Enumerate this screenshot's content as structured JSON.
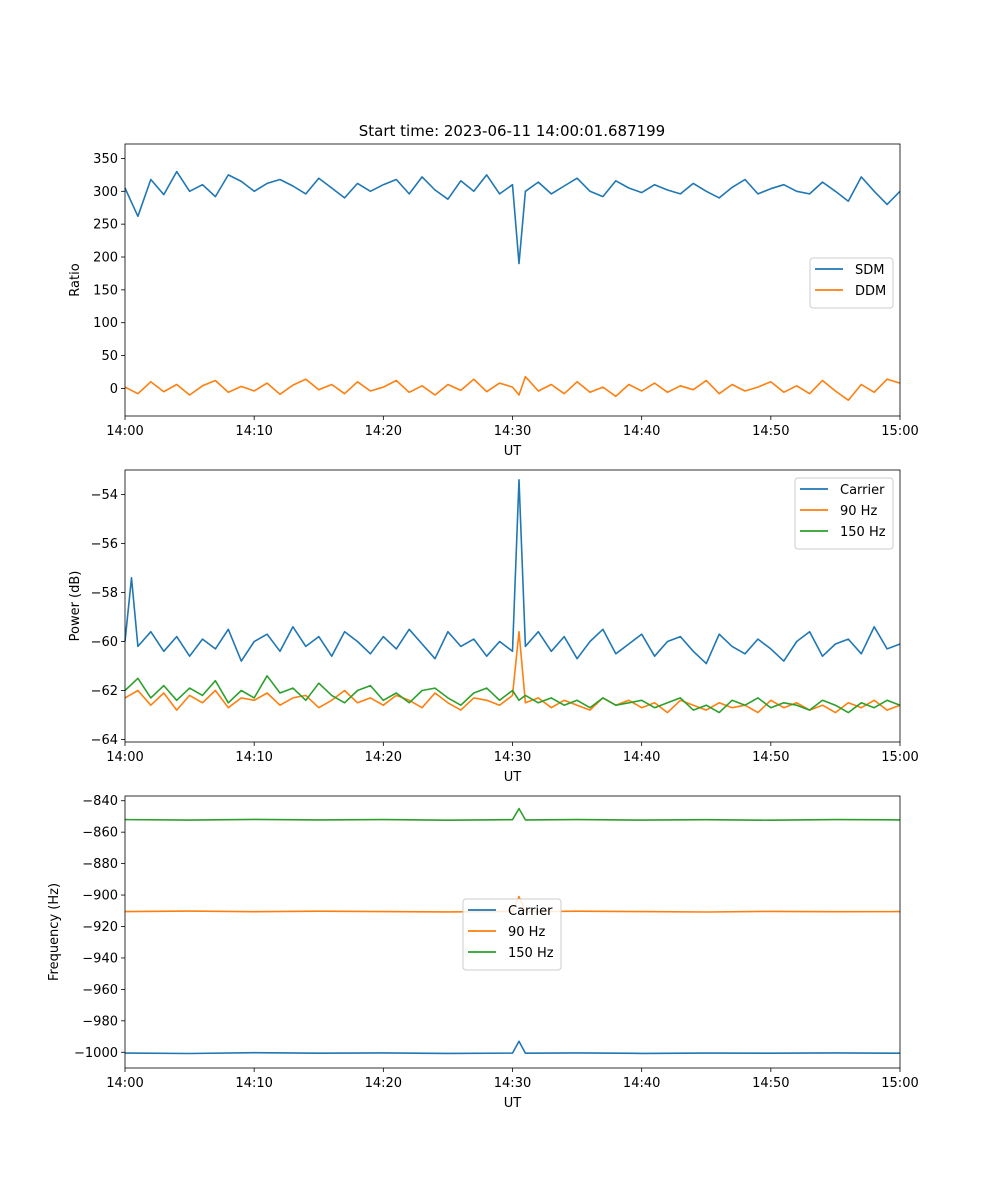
{
  "figure": {
    "title": "Start time: 2023-06-11 14:00:01.687199"
  },
  "chart_data": [
    {
      "type": "line",
      "xlabel": "UT",
      "ylabel": "Ratio",
      "xticks": [
        "14:00",
        "14:10",
        "14:20",
        "14:30",
        "14:40",
        "14:50",
        "15:00"
      ],
      "xlim": [
        "14:00",
        "15:00"
      ],
      "ylim": [
        -42,
        372
      ],
      "yticks": [
        0,
        50,
        100,
        150,
        200,
        250,
        300,
        350
      ],
      "legend": "center-right",
      "series": [
        {
          "name": "SDM",
          "color": "#1f77b4",
          "x": [
            "14:00",
            "14:01",
            "14:02",
            "14:03",
            "14:04",
            "14:05",
            "14:06",
            "14:07",
            "14:08",
            "14:09",
            "14:10",
            "14:11",
            "14:12",
            "14:13",
            "14:14",
            "14:15",
            "14:16",
            "14:17",
            "14:18",
            "14:19",
            "14:20",
            "14:21",
            "14:22",
            "14:23",
            "14:24",
            "14:25",
            "14:26",
            "14:27",
            "14:28",
            "14:29",
            "14:30",
            "14:30:30",
            "14:31",
            "14:32",
            "14:33",
            "14:34",
            "14:35",
            "14:36",
            "14:37",
            "14:38",
            "14:39",
            "14:40",
            "14:41",
            "14:42",
            "14:43",
            "14:44",
            "14:45",
            "14:46",
            "14:47",
            "14:48",
            "14:49",
            "14:50",
            "14:51",
            "14:52",
            "14:53",
            "14:54",
            "14:55",
            "14:56",
            "14:57",
            "14:58",
            "14:59",
            "15:00"
          ],
          "values": [
            305,
            262,
            318,
            295,
            330,
            300,
            310,
            292,
            325,
            315,
            300,
            312,
            318,
            308,
            296,
            320,
            305,
            290,
            312,
            300,
            310,
            318,
            296,
            322,
            302,
            288,
            316,
            300,
            325,
            296,
            310,
            190,
            300,
            314,
            296,
            308,
            320,
            300,
            292,
            316,
            305,
            298,
            310,
            302,
            296,
            312,
            300,
            290,
            306,
            318,
            296,
            304,
            310,
            300,
            296,
            314,
            300,
            285,
            322,
            300,
            280,
            300
          ]
        },
        {
          "name": "DDM",
          "color": "#ff7f0e",
          "x": [
            "14:00",
            "14:01",
            "14:02",
            "14:03",
            "14:04",
            "14:05",
            "14:06",
            "14:07",
            "14:08",
            "14:09",
            "14:10",
            "14:11",
            "14:12",
            "14:13",
            "14:14",
            "14:15",
            "14:16",
            "14:17",
            "14:18",
            "14:19",
            "14:20",
            "14:21",
            "14:22",
            "14:23",
            "14:24",
            "14:25",
            "14:26",
            "14:27",
            "14:28",
            "14:29",
            "14:30",
            "14:30:30",
            "14:31",
            "14:32",
            "14:33",
            "14:34",
            "14:35",
            "14:36",
            "14:37",
            "14:38",
            "14:39",
            "14:40",
            "14:41",
            "14:42",
            "14:43",
            "14:44",
            "14:45",
            "14:46",
            "14:47",
            "14:48",
            "14:49",
            "14:50",
            "14:51",
            "14:52",
            "14:53",
            "14:54",
            "14:55",
            "14:56",
            "14:57",
            "14:58",
            "14:59",
            "15:00"
          ],
          "values": [
            2,
            -8,
            10,
            -5,
            6,
            -10,
            4,
            12,
            -6,
            3,
            -4,
            8,
            -9,
            5,
            14,
            -2,
            6,
            -8,
            10,
            -4,
            2,
            12,
            -6,
            4,
            -10,
            6,
            -3,
            14,
            -5,
            8,
            2,
            -10,
            18,
            -4,
            6,
            -8,
            10,
            -6,
            2,
            -12,
            6,
            -4,
            8,
            -6,
            4,
            -2,
            12,
            -8,
            6,
            -4,
            2,
            10,
            -6,
            4,
            -8,
            12,
            -4,
            -18,
            6,
            -6,
            14,
            8
          ]
        }
      ]
    },
    {
      "type": "line",
      "xlabel": "UT",
      "ylabel": "Power (dB)",
      "xticks": [
        "14:00",
        "14:10",
        "14:20",
        "14:30",
        "14:40",
        "14:50",
        "15:00"
      ],
      "xlim": [
        "14:00",
        "15:00"
      ],
      "ylim": [
        -64.1,
        -53.0
      ],
      "yticks": [
        -64,
        -62,
        -60,
        -58,
        -56,
        -54
      ],
      "legend": "top-right",
      "series": [
        {
          "name": "Carrier",
          "color": "#1f77b4",
          "x": [
            "14:00",
            "14:00:30",
            "14:01",
            "14:02",
            "14:03",
            "14:04",
            "14:05",
            "14:06",
            "14:07",
            "14:08",
            "14:09",
            "14:10",
            "14:11",
            "14:12",
            "14:13",
            "14:14",
            "14:15",
            "14:16",
            "14:17",
            "14:18",
            "14:19",
            "14:20",
            "14:21",
            "14:22",
            "14:23",
            "14:24",
            "14:25",
            "14:26",
            "14:27",
            "14:28",
            "14:29",
            "14:30",
            "14:30:30",
            "14:31",
            "14:32",
            "14:33",
            "14:34",
            "14:35",
            "14:36",
            "14:37",
            "14:38",
            "14:39",
            "14:40",
            "14:41",
            "14:42",
            "14:43",
            "14:44",
            "14:45",
            "14:46",
            "14:47",
            "14:48",
            "14:49",
            "14:50",
            "14:51",
            "14:52",
            "14:53",
            "14:54",
            "14:55",
            "14:56",
            "14:57",
            "14:58",
            "14:59",
            "15:00"
          ],
          "values": [
            -60.0,
            -57.4,
            -60.2,
            -59.6,
            -60.4,
            -59.8,
            -60.6,
            -59.9,
            -60.3,
            -59.5,
            -60.8,
            -60.0,
            -59.7,
            -60.4,
            -59.4,
            -60.2,
            -59.8,
            -60.6,
            -59.6,
            -60.0,
            -60.5,
            -59.8,
            -60.3,
            -59.5,
            -60.1,
            -60.7,
            -59.6,
            -60.2,
            -59.9,
            -60.6,
            -60.0,
            -60.4,
            -53.4,
            -60.2,
            -59.6,
            -60.4,
            -59.8,
            -60.7,
            -60.0,
            -59.5,
            -60.5,
            -60.1,
            -59.7,
            -60.6,
            -60.0,
            -59.8,
            -60.4,
            -60.9,
            -59.7,
            -60.2,
            -60.5,
            -59.9,
            -60.3,
            -60.8,
            -60.0,
            -59.6,
            -60.6,
            -60.1,
            -59.9,
            -60.5,
            -59.4,
            -60.3,
            -60.1
          ]
        },
        {
          "name": "90 Hz",
          "color": "#ff7f0e",
          "x": [
            "14:00",
            "14:01",
            "14:02",
            "14:03",
            "14:04",
            "14:05",
            "14:06",
            "14:07",
            "14:08",
            "14:09",
            "14:10",
            "14:11",
            "14:12",
            "14:13",
            "14:14",
            "14:15",
            "14:16",
            "14:17",
            "14:18",
            "14:19",
            "14:20",
            "14:21",
            "14:22",
            "14:23",
            "14:24",
            "14:25",
            "14:26",
            "14:27",
            "14:28",
            "14:29",
            "14:30",
            "14:30:30",
            "14:31",
            "14:32",
            "14:33",
            "14:34",
            "14:35",
            "14:36",
            "14:37",
            "14:38",
            "14:39",
            "14:40",
            "14:41",
            "14:42",
            "14:43",
            "14:44",
            "14:45",
            "14:46",
            "14:47",
            "14:48",
            "14:49",
            "14:50",
            "14:51",
            "14:52",
            "14:53",
            "14:54",
            "14:55",
            "14:56",
            "14:57",
            "14:58",
            "14:59",
            "15:00"
          ],
          "values": [
            -62.3,
            -62.0,
            -62.6,
            -62.1,
            -62.8,
            -62.2,
            -62.5,
            -62.0,
            -62.7,
            -62.3,
            -62.4,
            -62.1,
            -62.6,
            -62.3,
            -62.2,
            -62.7,
            -62.4,
            -62.0,
            -62.5,
            -62.3,
            -62.6,
            -62.2,
            -62.4,
            -62.7,
            -62.1,
            -62.5,
            -62.8,
            -62.3,
            -62.4,
            -62.6,
            -62.2,
            -59.6,
            -62.5,
            -62.3,
            -62.7,
            -62.4,
            -62.6,
            -62.8,
            -62.3,
            -62.6,
            -62.4,
            -62.7,
            -62.5,
            -62.9,
            -62.4,
            -62.6,
            -62.8,
            -62.5,
            -62.7,
            -62.6,
            -62.9,
            -62.4,
            -62.7,
            -62.5,
            -62.8,
            -62.6,
            -62.9,
            -62.5,
            -62.7,
            -62.4,
            -62.8,
            -62.6
          ]
        },
        {
          "name": "150 Hz",
          "color": "#2ca02c",
          "x": [
            "14:00",
            "14:01",
            "14:02",
            "14:03",
            "14:04",
            "14:05",
            "14:06",
            "14:07",
            "14:08",
            "14:09",
            "14:10",
            "14:11",
            "14:12",
            "14:13",
            "14:14",
            "14:15",
            "14:16",
            "14:17",
            "14:18",
            "14:19",
            "14:20",
            "14:21",
            "14:22",
            "14:23",
            "14:24",
            "14:25",
            "14:26",
            "14:27",
            "14:28",
            "14:29",
            "14:30",
            "14:30:30",
            "14:31",
            "14:32",
            "14:33",
            "14:34",
            "14:35",
            "14:36",
            "14:37",
            "14:38",
            "14:39",
            "14:40",
            "14:41",
            "14:42",
            "14:43",
            "14:44",
            "14:45",
            "14:46",
            "14:47",
            "14:48",
            "14:49",
            "14:50",
            "14:51",
            "14:52",
            "14:53",
            "14:54",
            "14:55",
            "14:56",
            "14:57",
            "14:58",
            "14:59",
            "15:00"
          ],
          "values": [
            -62.0,
            -61.5,
            -62.3,
            -61.8,
            -62.4,
            -61.9,
            -62.2,
            -61.6,
            -62.5,
            -62.0,
            -62.3,
            -61.4,
            -62.1,
            -61.9,
            -62.4,
            -61.7,
            -62.2,
            -62.5,
            -62.0,
            -61.8,
            -62.4,
            -62.1,
            -62.5,
            -62.0,
            -61.9,
            -62.3,
            -62.6,
            -62.1,
            -61.9,
            -62.4,
            -62.0,
            -62.4,
            -62.2,
            -62.5,
            -62.3,
            -62.6,
            -62.4,
            -62.7,
            -62.3,
            -62.6,
            -62.5,
            -62.4,
            -62.7,
            -62.5,
            -62.3,
            -62.8,
            -62.6,
            -62.9,
            -62.4,
            -62.6,
            -62.3,
            -62.7,
            -62.5,
            -62.6,
            -62.8,
            -62.4,
            -62.6,
            -62.9,
            -62.5,
            -62.7,
            -62.4,
            -62.6
          ]
        }
      ]
    },
    {
      "type": "line",
      "xlabel": "UT",
      "ylabel": "Frequency (Hz)",
      "xticks": [
        "14:00",
        "14:10",
        "14:20",
        "14:30",
        "14:40",
        "14:50",
        "15:00"
      ],
      "xlim": [
        "14:00",
        "15:00"
      ],
      "ylim": [
        -1010,
        -837
      ],
      "yticks": [
        -1000,
        -980,
        -960,
        -940,
        -920,
        -900,
        -880,
        -860,
        -840
      ],
      "legend": "center",
      "series": [
        {
          "name": "Carrier",
          "color": "#1f77b4",
          "x": [
            "14:00",
            "14:05",
            "14:10",
            "14:15",
            "14:20",
            "14:25",
            "14:30",
            "14:30:30",
            "14:31",
            "14:35",
            "14:40",
            "14:45",
            "14:50",
            "14:55",
            "15:00"
          ],
          "values": [
            -1000.5,
            -1000.8,
            -1000.3,
            -1000.6,
            -1000.4,
            -1000.7,
            -1000.5,
            -993.0,
            -1000.6,
            -1000.4,
            -1000.7,
            -1000.5,
            -1000.6,
            -1000.4,
            -1000.6
          ]
        },
        {
          "name": "90 Hz",
          "color": "#ff7f0e",
          "x": [
            "14:00",
            "14:05",
            "14:10",
            "14:15",
            "14:20",
            "14:25",
            "14:30",
            "14:30:30",
            "14:31",
            "14:35",
            "14:40",
            "14:45",
            "14:50",
            "14:55",
            "15:00"
          ],
          "values": [
            -910.5,
            -910.2,
            -910.6,
            -910.3,
            -910.5,
            -910.7,
            -910.4,
            -901.0,
            -910.6,
            -910.3,
            -910.5,
            -910.8,
            -910.4,
            -910.6,
            -910.5
          ]
        },
        {
          "name": "150 Hz",
          "color": "#2ca02c",
          "x": [
            "14:00",
            "14:05",
            "14:10",
            "14:15",
            "14:20",
            "14:25",
            "14:30",
            "14:30:30",
            "14:31",
            "14:35",
            "14:40",
            "14:45",
            "14:50",
            "14:55",
            "15:00"
          ],
          "values": [
            -852.0,
            -852.3,
            -851.9,
            -852.2,
            -852.0,
            -852.4,
            -852.1,
            -845.0,
            -852.2,
            -852.0,
            -852.3,
            -852.1,
            -852.4,
            -852.0,
            -852.2
          ]
        }
      ]
    }
  ]
}
